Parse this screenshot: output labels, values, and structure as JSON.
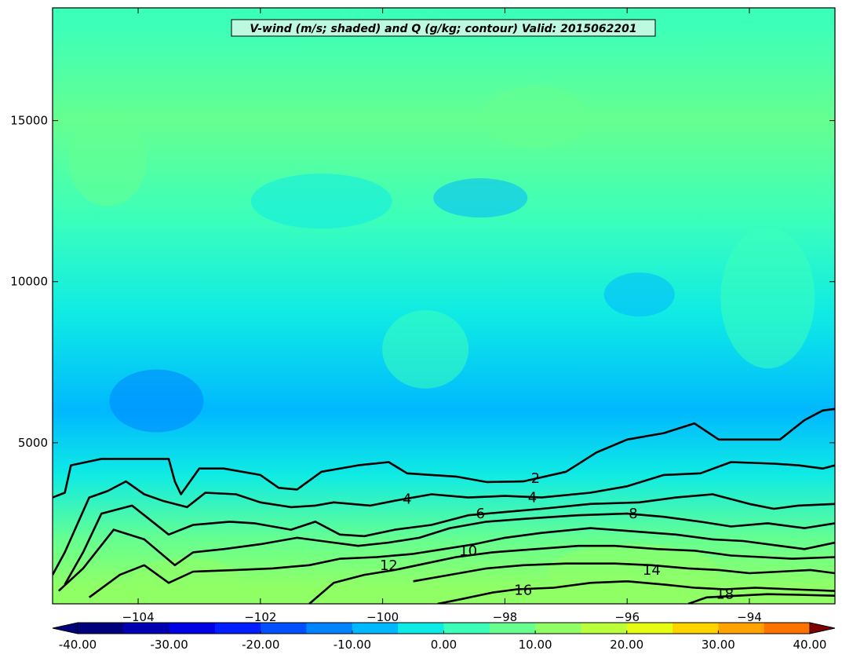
{
  "chart_data": {
    "type": "heatmap",
    "title": "V-wind (m/s; shaded) and Q (g/kg; contour) Valid: 2015062201",
    "xlabel": "",
    "ylabel": "",
    "xlim": [
      -105.4,
      -92.6
    ],
    "ylim": [
      0,
      18500
    ],
    "x_ticks": [
      -104,
      -102,
      -100,
      -98,
      -96,
      -94
    ],
    "x_tick_labels": [
      "−104",
      "−102",
      "−100",
      "−98",
      "−96",
      "−94"
    ],
    "y_ticks": [
      5000,
      10000,
      15000
    ],
    "y_tick_labels": [
      "5000",
      "10000",
      "15000"
    ],
    "shaded_field": {
      "name": "V-wind (m/s)",
      "colorbar": {
        "min": -40,
        "max": 40,
        "step": 5,
        "labels": [
          "-40.00",
          "-30.00",
          "-20.00",
          "-10.00",
          "0.00",
          "10.00",
          "20.00",
          "30.00",
          "40.00"
        ],
        "label_values": [
          -40,
          -30,
          -20,
          -10,
          0,
          10,
          20,
          30,
          40
        ],
        "colors": [
          "#00007f",
          "#0000b2",
          "#0000e5",
          "#001dff",
          "#0050ff",
          "#0084ff",
          "#00b8ff",
          "#0febe4",
          "#3cffba",
          "#66ff90",
          "#90ff66",
          "#baff3c",
          "#e4ff13",
          "#ffd300",
          "#ffa300",
          "#ff7200",
          "#ff4000",
          "#e50f00",
          "#b20000",
          "#7f0000"
        ]
      },
      "approx_values_by_height": [
        {
          "height": 500,
          "v": 12
        },
        {
          "height": 2000,
          "v": 7
        },
        {
          "height": 4000,
          "v": -4
        },
        {
          "height": 6000,
          "v": -8
        },
        {
          "height": 9000,
          "v": -3
        },
        {
          "height": 12000,
          "v": 0
        },
        {
          "height": 15000,
          "v": 6
        },
        {
          "height": 18000,
          "v": 4
        }
      ]
    },
    "contour_field": {
      "name": "Q (g/kg)",
      "levels": [
        2,
        4,
        6,
        8,
        10,
        12,
        14,
        16,
        18
      ],
      "labels": [
        {
          "text": "2",
          "x": -97.5,
          "y": 3900
        },
        {
          "text": "4",
          "x": -97.55,
          "y": 3300
        },
        {
          "text": "4",
          "x": -99.6,
          "y": 3250
        },
        {
          "text": "6",
          "x": -98.4,
          "y": 2800
        },
        {
          "text": "8",
          "x": -95.9,
          "y": 2800
        },
        {
          "text": "10",
          "x": -98.6,
          "y": 1650
        },
        {
          "text": "12",
          "x": -99.9,
          "y": 1200
        },
        {
          "text": "14",
          "x": -95.6,
          "y": 1050
        },
        {
          "text": "16",
          "x": -97.7,
          "y": 430
        },
        {
          "text": "18",
          "x": -94.4,
          "y": 300
        }
      ],
      "lines": [
        {
          "level": 2,
          "points": [
            [
              -105.4,
              3300
            ],
            [
              -105.2,
              3450
            ],
            [
              -105.1,
              4300
            ],
            [
              -104.6,
              4500
            ],
            [
              -103.5,
              4500
            ],
            [
              -103.4,
              3800
            ],
            [
              -103.3,
              3400
            ],
            [
              -103.0,
              4200
            ],
            [
              -102.6,
              4200
            ],
            [
              -102.0,
              4000
            ],
            [
              -101.7,
              3600
            ],
            [
              -101.4,
              3550
            ],
            [
              -101.0,
              4100
            ],
            [
              -100.4,
              4300
            ],
            [
              -99.9,
              4400
            ],
            [
              -99.6,
              4050
            ],
            [
              -99.2,
              4000
            ],
            [
              -98.8,
              3950
            ],
            [
              -98.3,
              3780
            ],
            [
              -97.7,
              3800
            ],
            [
              -97.0,
              4100
            ],
            [
              -96.5,
              4700
            ],
            [
              -96.0,
              5100
            ],
            [
              -95.4,
              5300
            ],
            [
              -94.9,
              5600
            ],
            [
              -94.5,
              5100
            ],
            [
              -94.0,
              5100
            ],
            [
              -93.5,
              5100
            ],
            [
              -93.1,
              5700
            ],
            [
              -92.8,
              6000
            ],
            [
              -92.6,
              6050
            ]
          ]
        },
        {
          "level": 4,
          "points": [
            [
              -105.4,
              900
            ],
            [
              -105.2,
              1600
            ],
            [
              -104.8,
              3300
            ],
            [
              -104.5,
              3500
            ],
            [
              -104.2,
              3800
            ],
            [
              -103.9,
              3400
            ],
            [
              -103.6,
              3200
            ],
            [
              -103.2,
              3000
            ],
            [
              -102.9,
              3450
            ],
            [
              -102.4,
              3400
            ],
            [
              -102.0,
              3150
            ],
            [
              -101.5,
              3000
            ],
            [
              -101.1,
              3050
            ],
            [
              -100.8,
              3150
            ],
            [
              -100.2,
              3050
            ],
            [
              -99.8,
              3200
            ],
            [
              -99.2,
              3400
            ],
            [
              -98.6,
              3300
            ],
            [
              -98.0,
              3350
            ],
            [
              -97.4,
              3300
            ],
            [
              -96.6,
              3450
            ],
            [
              -96.0,
              3650
            ],
            [
              -95.4,
              4000
            ],
            [
              -94.8,
              4050
            ],
            [
              -94.3,
              4400
            ],
            [
              -93.6,
              4350
            ],
            [
              -93.2,
              4300
            ],
            [
              -92.8,
              4200
            ],
            [
              -92.6,
              4300
            ]
          ]
        },
        {
          "level": 6,
          "points": [
            [
              -105.2,
              600
            ],
            [
              -104.9,
              1600
            ],
            [
              -104.6,
              2800
            ],
            [
              -104.1,
              3050
            ],
            [
              -103.8,
              2600
            ],
            [
              -103.5,
              2150
            ],
            [
              -103.1,
              2450
            ],
            [
              -102.5,
              2550
            ],
            [
              -102.1,
              2500
            ],
            [
              -101.5,
              2300
            ],
            [
              -101.1,
              2550
            ],
            [
              -100.7,
              2150
            ],
            [
              -100.3,
              2100
            ],
            [
              -99.8,
              2300
            ],
            [
              -99.2,
              2450
            ],
            [
              -98.6,
              2750
            ],
            [
              -98.0,
              2850
            ],
            [
              -97.4,
              2950
            ],
            [
              -96.6,
              3100
            ],
            [
              -95.8,
              3150
            ],
            [
              -95.2,
              3300
            ],
            [
              -94.6,
              3400
            ],
            [
              -94.0,
              3100
            ],
            [
              -93.6,
              2950
            ],
            [
              -93.2,
              3050
            ],
            [
              -92.6,
              3100
            ]
          ]
        },
        {
          "level": 8,
          "points": [
            [
              -105.3,
              400
            ],
            [
              -104.9,
              1100
            ],
            [
              -104.4,
              2300
            ],
            [
              -103.9,
              2000
            ],
            [
              -103.4,
              1200
            ],
            [
              -103.1,
              1600
            ],
            [
              -102.6,
              1700
            ],
            [
              -102.0,
              1850
            ],
            [
              -101.4,
              2050
            ],
            [
              -101.0,
              1950
            ],
            [
              -100.4,
              1800
            ],
            [
              -99.9,
              1900
            ],
            [
              -99.4,
              2050
            ],
            [
              -98.9,
              2350
            ],
            [
              -98.3,
              2550
            ],
            [
              -97.6,
              2650
            ],
            [
              -96.8,
              2750
            ],
            [
              -96.0,
              2800
            ],
            [
              -95.4,
              2700
            ],
            [
              -94.8,
              2550
            ],
            [
              -94.3,
              2400
            ],
            [
              -93.7,
              2500
            ],
            [
              -93.1,
              2350
            ],
            [
              -92.6,
              2500
            ]
          ]
        },
        {
          "level": 10,
          "points": [
            [
              -104.8,
              200
            ],
            [
              -104.3,
              900
            ],
            [
              -103.9,
              1200
            ],
            [
              -103.5,
              650
            ],
            [
              -103.1,
              1000
            ],
            [
              -102.4,
              1050
            ],
            [
              -101.8,
              1100
            ],
            [
              -101.2,
              1200
            ],
            [
              -100.7,
              1400
            ],
            [
              -100.1,
              1450
            ],
            [
              -99.5,
              1550
            ],
            [
              -99.0,
              1700
            ],
            [
              -98.5,
              1850
            ],
            [
              -98.0,
              2050
            ],
            [
              -97.4,
              2200
            ],
            [
              -96.6,
              2350
            ],
            [
              -95.9,
              2250
            ],
            [
              -95.2,
              2150
            ],
            [
              -94.6,
              2000
            ],
            [
              -94.1,
              1950
            ],
            [
              -93.5,
              1800
            ],
            [
              -93.1,
              1700
            ],
            [
              -92.6,
              1900
            ]
          ]
        },
        {
          "level": 12,
          "points": [
            [
              -101.2,
              0
            ],
            [
              -100.8,
              650
            ],
            [
              -100.3,
              900
            ],
            [
              -99.8,
              1050
            ],
            [
              -99.3,
              1250
            ],
            [
              -98.8,
              1450
            ],
            [
              -98.2,
              1600
            ],
            [
              -97.5,
              1700
            ],
            [
              -96.8,
              1800
            ],
            [
              -96.2,
              1800
            ],
            [
              -95.5,
              1700
            ],
            [
              -94.9,
              1650
            ],
            [
              -94.3,
              1500
            ],
            [
              -93.8,
              1450
            ],
            [
              -93.3,
              1400
            ],
            [
              -92.6,
              1450
            ]
          ]
        },
        {
          "level": 14,
          "points": [
            [
              -99.5,
              700
            ],
            [
              -98.9,
              900
            ],
            [
              -98.3,
              1100
            ],
            [
              -97.7,
              1200
            ],
            [
              -97.0,
              1250
            ],
            [
              -96.2,
              1250
            ],
            [
              -95.6,
              1200
            ],
            [
              -95.0,
              1100
            ],
            [
              -94.5,
              1050
            ],
            [
              -94.0,
              950
            ],
            [
              -93.5,
              1000
            ],
            [
              -93.0,
              1050
            ],
            [
              -92.6,
              950
            ]
          ]
        },
        {
          "level": 16,
          "points": [
            [
              -99.1,
              0
            ],
            [
              -98.7,
              150
            ],
            [
              -98.2,
              350
            ],
            [
              -97.8,
              450
            ],
            [
              -97.2,
              500
            ],
            [
              -96.6,
              650
            ],
            [
              -96.0,
              700
            ],
            [
              -95.4,
              600
            ],
            [
              -94.9,
              500
            ],
            [
              -94.4,
              450
            ],
            [
              -93.9,
              500
            ],
            [
              -93.3,
              450
            ],
            [
              -92.6,
              400
            ]
          ]
        },
        {
          "level": 18,
          "points": [
            [
              -95.0,
              0
            ],
            [
              -94.7,
              200
            ],
            [
              -94.2,
              250
            ],
            [
              -93.7,
              300
            ],
            [
              -93.2,
              280
            ],
            [
              -92.6,
              250
            ]
          ]
        }
      ]
    }
  }
}
